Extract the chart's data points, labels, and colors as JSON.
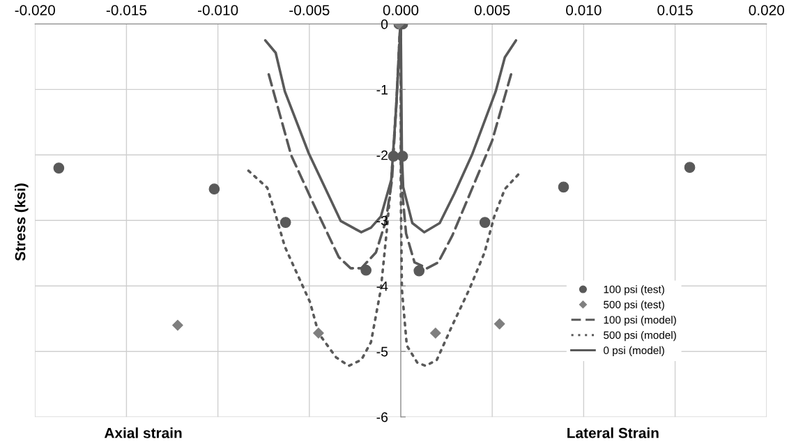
{
  "chart_data": {
    "type": "line",
    "ylabel": "Stress (ksi)",
    "annotations": [
      "Axial strain",
      "Lateral Strain"
    ],
    "xlim": [
      -0.02,
      0.02
    ],
    "xticks": [
      {
        "value": -0.02,
        "label": "-0.020"
      },
      {
        "value": -0.015,
        "label": "-0.015"
      },
      {
        "value": -0.01,
        "label": "-0.010"
      },
      {
        "value": -0.005,
        "label": "-0.005"
      },
      {
        "value": 0,
        "label": "0.000"
      },
      {
        "value": 0.005,
        "label": "0.005"
      },
      {
        "value": 0.01,
        "label": "0.010"
      },
      {
        "value": 0.015,
        "label": "0.015"
      },
      {
        "value": 0.02,
        "label": "0.020"
      }
    ],
    "ylim": [
      -6,
      0
    ],
    "yticks": [
      -6,
      -5,
      -4,
      -3,
      -2,
      -1,
      0
    ],
    "grid": true,
    "legend": "bottom right",
    "series": [
      {
        "name": "100 psi (test)",
        "type": "scatter",
        "marker": "circle",
        "color": "#595959",
        "x": [
          -0.0187,
          -0.0102,
          -0.0063,
          -0.0019,
          -0.0004,
          -0.0001,
          0.0001,
          0.0001,
          0.001,
          0.0046,
          0.0089,
          0.0158
        ],
        "values": [
          -2.2,
          -2.52,
          -3.03,
          -3.76,
          -2.02,
          0,
          0,
          -2.02,
          -3.77,
          -3.03,
          -2.49,
          -2.19
        ]
      },
      {
        "name": "500 psi (test)",
        "type": "scatter",
        "marker": "diamond",
        "color": "#7f7f7f",
        "x": [
          -0.0122,
          -0.0045,
          -0.0001,
          0.0019,
          0.0054
        ],
        "values": [
          -4.6,
          -4.72,
          0,
          -4.72,
          -4.58
        ]
      },
      {
        "name": "100 psi (model)",
        "line_style": "dashed",
        "marker": "none",
        "color": "#595959",
        "x": [
          -0.00722,
          -0.006,
          -0.00477,
          -0.00339,
          -0.00274,
          -0.00216,
          -0.00136,
          -0.00082,
          -0.00048,
          -0.00025,
          -6e-05,
          0,
          2e-05,
          0.00029,
          0.00075,
          0.00144,
          0.00205,
          0.00282,
          0.00389,
          0.005,
          0.00603
        ],
        "values": [
          -0.77,
          -2.0,
          -2.75,
          -3.56,
          -3.73,
          -3.73,
          -3.49,
          -3.01,
          -2.38,
          -1.26,
          -0.15,
          0,
          -2.38,
          -3.2,
          -3.64,
          -3.73,
          -3.64,
          -3.23,
          -2.52,
          -1.78,
          -0.77
        ]
      },
      {
        "name": "500 psi (model)",
        "line_style": "dotted",
        "marker": "none",
        "color": "#595959",
        "x": [
          -0.00833,
          -0.0073,
          -0.00688,
          -0.00634,
          -0.00496,
          -0.0045,
          -0.00354,
          -0.00285,
          -0.00216,
          -0.00163,
          -0.00109,
          -0.00075,
          -0.00052,
          -0.00025,
          -6e-05,
          0,
          0,
          6e-05,
          0.00033,
          0.0009,
          0.00136,
          0.00197,
          0.00282,
          0.00375,
          0.00458,
          0.00511,
          0.00569,
          0.00642
        ],
        "values": [
          -2.24,
          -2.5,
          -2.88,
          -3.4,
          -4.25,
          -4.72,
          -5.09,
          -5.22,
          -5.13,
          -4.86,
          -4.05,
          -3.11,
          -2.38,
          -1.26,
          -0.15,
          0,
          -2.56,
          -4.05,
          -4.91,
          -5.17,
          -5.22,
          -5.13,
          -4.6,
          -4.05,
          -3.49,
          -2.94,
          -2.52,
          -2.3
        ]
      },
      {
        "name": "0 psi (model)",
        "line_style": "solid",
        "marker": "none",
        "color": "#595959",
        "x": [
          -0.00741,
          -0.00684,
          -0.00634,
          -0.00504,
          -0.00328,
          -0.00216,
          -0.00163,
          -0.00109,
          -0.00052,
          -0.00025,
          0,
          6e-05,
          0.00013,
          0.00063,
          0.00128,
          0.00213,
          0.00293,
          0.00389,
          0.00519,
          0.00569,
          0.0063
        ],
        "values": [
          -0.25,
          -0.44,
          -1.03,
          -1.97,
          -3.01,
          -3.18,
          -3.11,
          -2.94,
          -2.38,
          -1.26,
          0,
          -2.0,
          -2.49,
          -3.04,
          -3.18,
          -3.04,
          -2.59,
          -2.0,
          -1.03,
          -0.51,
          -0.25
        ]
      }
    ]
  }
}
